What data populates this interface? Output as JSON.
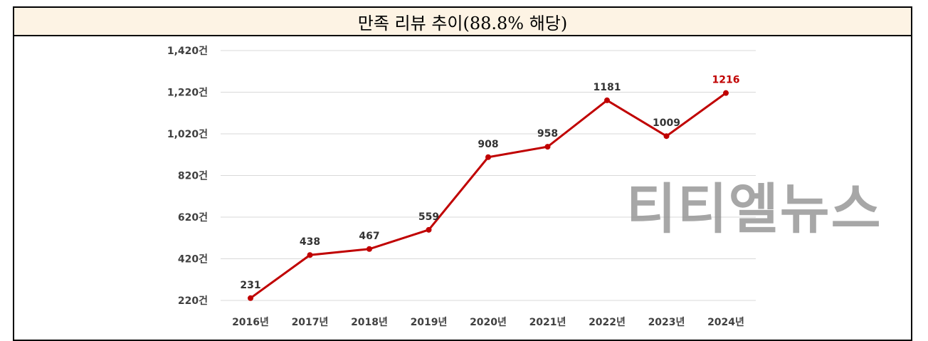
{
  "title": "만족 리뷰 추이(88.8% 해당)",
  "watermark": "티티엘뉴스",
  "chart_data": {
    "type": "line",
    "title": "만족 리뷰 추이(88.8% 해당)",
    "categories": [
      "2016년",
      "2017년",
      "2018년",
      "2019년",
      "2020년",
      "2021년",
      "2022년",
      "2023년",
      "2024년"
    ],
    "values": [
      231,
      438,
      467,
      559,
      908,
      958,
      1181,
      1009,
      1216
    ],
    "ylim": [
      220,
      1420
    ],
    "yticks": [
      220,
      420,
      620,
      820,
      1020,
      1220,
      1420
    ],
    "ytick_labels": [
      "220건",
      "420건",
      "620건",
      "820건",
      "1,020건",
      "1,220건",
      "1,420건"
    ],
    "grid": true,
    "line_color": "#c00000",
    "highlight_label_color": "#c00000"
  }
}
